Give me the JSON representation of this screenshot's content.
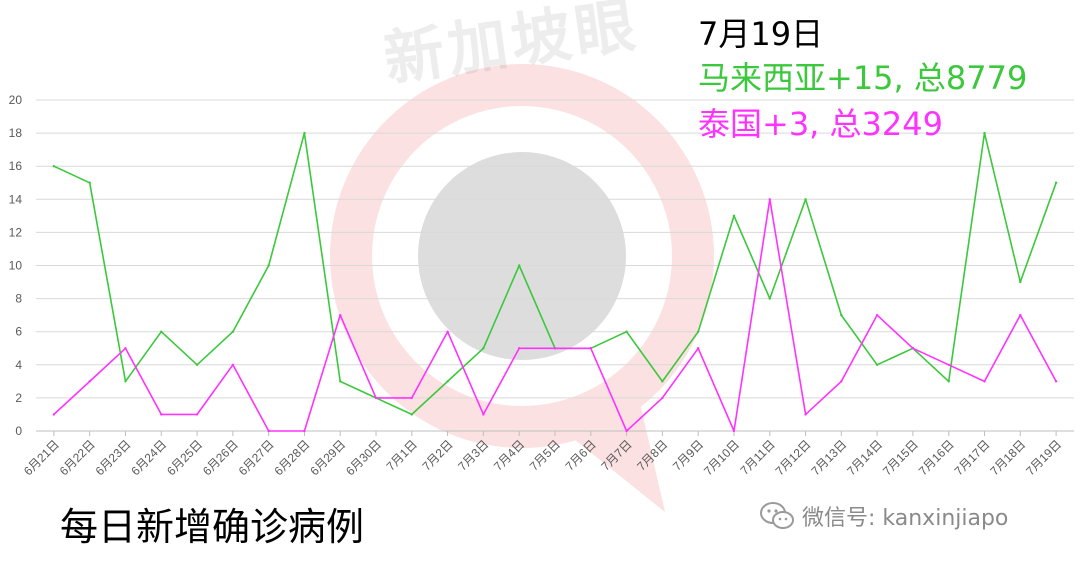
{
  "watermark": {
    "text": "新加坡眼",
    "registered_mark": "®"
  },
  "annotation": {
    "date": "7月19日",
    "malaysia": "马来西亚+15, 总8779",
    "thailand": "泰国+3, 总3249"
  },
  "caption": "每日新增确诊病例",
  "footer": {
    "wechat_label": "微信号: kanxinjiapo"
  },
  "colors": {
    "malaysia": "#3cc83c",
    "thailand": "#ff33ff",
    "grid": "#d9d9d9",
    "axis": "#bfbfbf"
  },
  "chart_data": {
    "type": "line",
    "categories": [
      "6月21日",
      "6月22日",
      "6月23日",
      "6月24日",
      "6月25日",
      "6月26日",
      "6月27日",
      "6月28日",
      "6月29日",
      "6月30日",
      "7月1日",
      "7月2日",
      "7月3日",
      "7月4日",
      "7月5日",
      "7月6日",
      "7月7日",
      "7月8日",
      "7月9日",
      "7月10日",
      "7月11日",
      "7月12日",
      "7月13日",
      "7月14日",
      "7月15日",
      "7月16日",
      "7月17日",
      "7月18日",
      "7月19日"
    ],
    "series": [
      {
        "values": [
          16,
          15,
          3,
          6,
          4,
          6,
          10,
          18,
          3,
          2,
          1,
          3,
          5,
          10,
          5,
          5,
          6,
          3,
          6,
          13,
          8,
          14,
          7,
          4,
          5,
          3,
          18,
          9,
          15
        ],
        "color": "#3cc83c"
      },
      {
        "values": [
          1,
          3,
          5,
          1,
          1,
          4,
          0,
          0,
          7,
          2,
          2,
          6,
          1,
          5,
          5,
          5,
          0,
          2,
          5,
          0,
          14,
          1,
          3,
          7,
          5,
          4,
          3,
          7,
          3
        ],
        "color": "#ff33ff"
      }
    ],
    "ylim": [
      0,
      20
    ],
    "yticks": [
      0,
      2,
      4,
      6,
      8,
      10,
      12,
      14,
      16,
      18,
      20
    ],
    "grid": true,
    "legend": "none"
  }
}
